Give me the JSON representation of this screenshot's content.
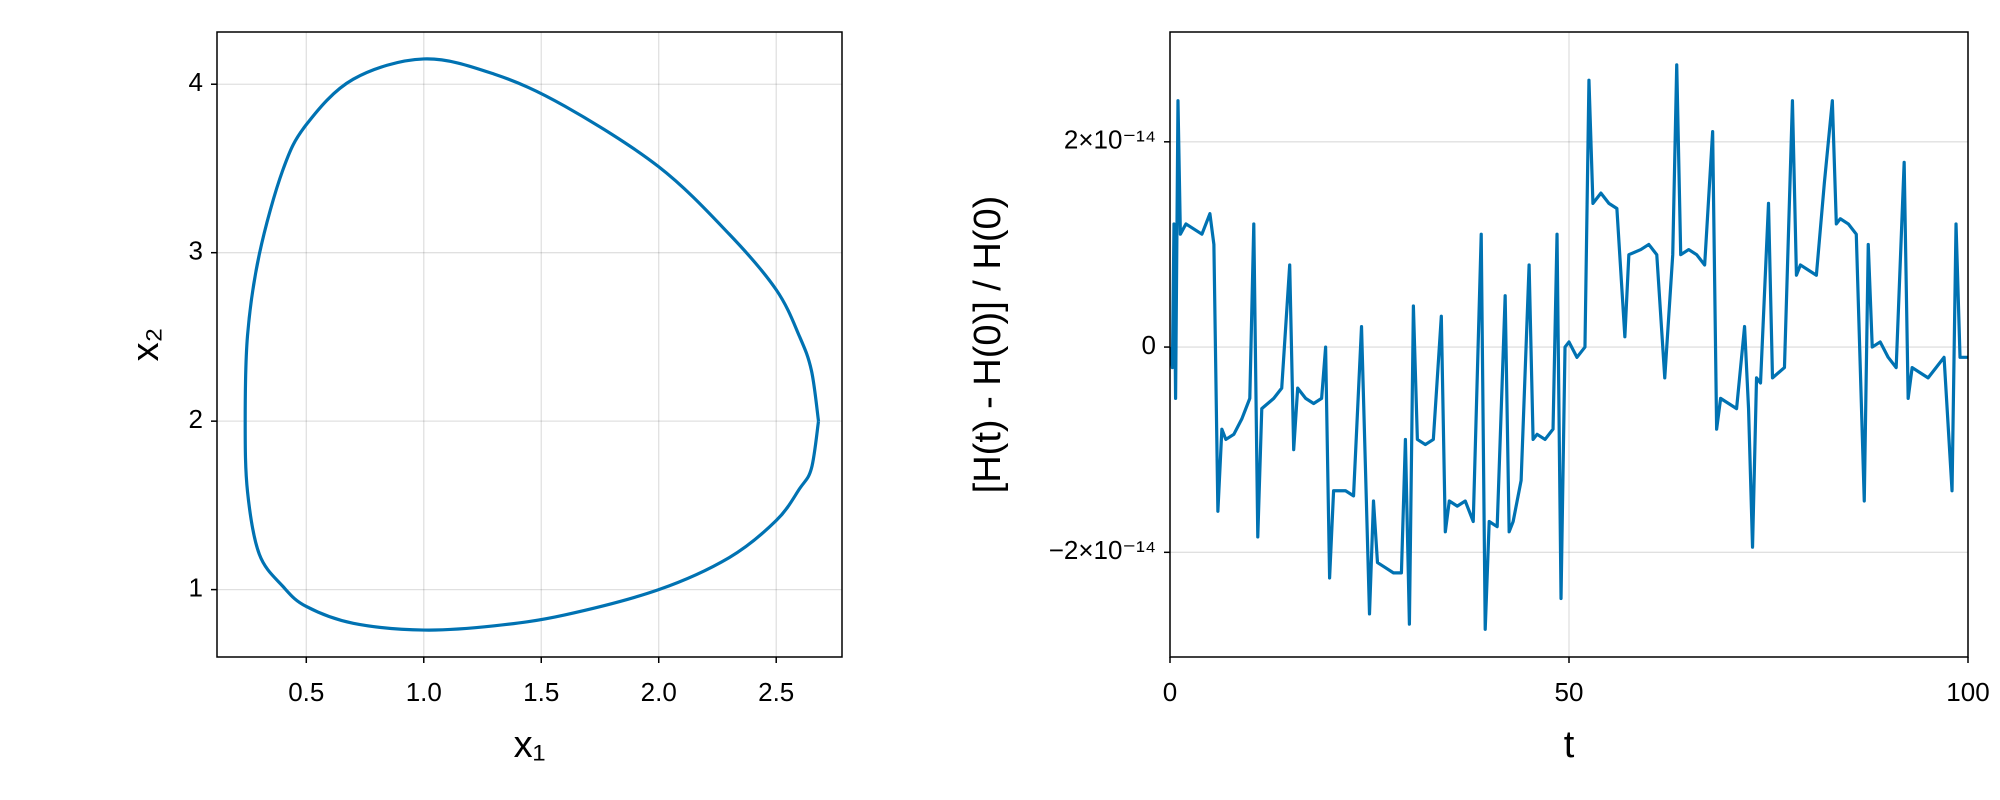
{
  "chart_data": [
    {
      "type": "line",
      "xlabel": "x₁",
      "ylabel": "x₂",
      "color": "#0072b2",
      "grid": true,
      "xlim": [
        0.12,
        2.78
      ],
      "ylim": [
        0.6,
        4.31
      ],
      "xticks": [
        0.5,
        {
          "value": 1,
          "label": "1.0"
        },
        1.5,
        {
          "value": 2,
          "label": "2.0"
        },
        2.5
      ],
      "yticks": [
        1,
        2,
        3,
        4
      ],
      "x": [
        2.68,
        2.65,
        2.6,
        2.5,
        2.3,
        2.0,
        1.6,
        1.3,
        1.0,
        0.7,
        0.5,
        0.4,
        0.3,
        0.25,
        0.24,
        0.25,
        0.3,
        0.4,
        0.5,
        0.7,
        1.0,
        1.3,
        1.6,
        2.0,
        2.3,
        2.5,
        2.6,
        2.65,
        2.68
      ],
      "y": [
        2.0,
        2.3,
        2.5,
        2.78,
        3.11,
        3.51,
        3.87,
        4.06,
        4.15,
        4.03,
        3.76,
        3.49,
        2.99,
        2.51,
        2.0,
        1.58,
        1.21,
        1.02,
        0.9,
        0.8,
        0.76,
        0.785,
        0.85,
        1.0,
        1.19,
        1.41,
        1.6,
        1.72,
        2.0
      ]
    },
    {
      "type": "line",
      "xlabel": "t",
      "ylabel": "[H(t) - H(0)] / H(0)",
      "color": "#0072b2",
      "grid": true,
      "xlim": [
        0,
        100
      ],
      "ylim": [
        -3.02e-14,
        3.07e-14
      ],
      "xticks": [
        0,
        50,
        100
      ],
      "yticks": [
        {
          "value": -2e-14,
          "label": "−2×10⁻¹⁴"
        },
        0,
        {
          "value": 2e-14,
          "label": "2×10⁻¹⁴"
        }
      ],
      "x": [
        0,
        0.3,
        0.5,
        0.7,
        1.0,
        1.3,
        2,
        3,
        4,
        5,
        5.5,
        6,
        6.5,
        7,
        8,
        9,
        10,
        10.5,
        11,
        11.5,
        13,
        14,
        15,
        15.5,
        16,
        17,
        18,
        19,
        19.5,
        20,
        20.5,
        22,
        23,
        24,
        25,
        25.5,
        26,
        27,
        28,
        29,
        29.5,
        30,
        30.5,
        31,
        32,
        33,
        34,
        34.5,
        35,
        36,
        37,
        38,
        39,
        39.5,
        40,
        41,
        42,
        42.5,
        43,
        44,
        45,
        45.5,
        46,
        47,
        48,
        48.5,
        49,
        49.5,
        50,
        51,
        52,
        52.5,
        53,
        54,
        55,
        56,
        57,
        57.5,
        59,
        60,
        61,
        62,
        63,
        63.5,
        64,
        65,
        66,
        67,
        68,
        68.5,
        69,
        70,
        71,
        72,
        72.5,
        73,
        73.5,
        74,
        75,
        75.5,
        77,
        78,
        78.5,
        79,
        80,
        81,
        82,
        83,
        83.5,
        84,
        85,
        86,
        87,
        87.5,
        88,
        89,
        90,
        91,
        92,
        92.5,
        93,
        94,
        95,
        96,
        97,
        98,
        98.5,
        99,
        100
      ],
      "y": [
        0,
        -2e-15,
        1.2e-14,
        -5e-15,
        2.4e-14,
        1.1e-14,
        1.2e-14,
        1.15e-14,
        1.1e-14,
        1.3e-14,
        1e-14,
        -1.6e-14,
        -8e-15,
        -9e-15,
        -8.5e-15,
        -7e-15,
        -5e-15,
        1.2e-14,
        -1.85e-14,
        -6e-15,
        -5e-15,
        -4e-15,
        8e-15,
        -1e-14,
        -4e-15,
        -5e-15,
        -5.5e-15,
        -5e-15,
        0,
        -2.25e-14,
        -1.4e-14,
        -1.4e-14,
        -1.45e-14,
        2e-15,
        -2.6e-14,
        -1.5e-14,
        -2.1e-14,
        -2.15e-14,
        -2.2e-14,
        -2.2e-14,
        -9e-15,
        -2.7e-14,
        4e-15,
        -9e-15,
        -9.5e-15,
        -9e-15,
        3e-15,
        -1.8e-14,
        -1.5e-14,
        -1.55e-14,
        -1.5e-14,
        -1.7e-14,
        1.1e-14,
        -2.75e-14,
        -1.7e-14,
        -1.75e-14,
        5e-15,
        -1.8e-14,
        -1.7e-14,
        -1.3e-14,
        8e-15,
        -9e-15,
        -8.5e-15,
        -9e-15,
        -8e-15,
        1.1e-14,
        -2.45e-14,
        0,
        5e-16,
        -1e-15,
        0,
        2.6e-14,
        1.4e-14,
        1.5e-14,
        1.4e-14,
        1.35e-14,
        1e-15,
        9e-15,
        9.5e-15,
        1e-14,
        9e-15,
        -3e-15,
        9e-15,
        2.75e-14,
        9e-15,
        9.5e-15,
        9e-15,
        8e-15,
        2.1e-14,
        -8e-15,
        -5e-15,
        -5.5e-15,
        -6e-15,
        2e-15,
        -6e-15,
        -1.95e-14,
        -3e-15,
        -3.5e-15,
        1.4e-14,
        -3e-15,
        -2e-15,
        2.4e-14,
        7e-15,
        8e-15,
        7.5e-15,
        7e-15,
        1.6e-14,
        2.4e-14,
        1.2e-14,
        1.25e-14,
        1.2e-14,
        1.1e-14,
        -1.5e-14,
        1e-14,
        0,
        5e-16,
        -1e-15,
        -2e-15,
        1.8e-14,
        -5e-15,
        -2e-15,
        -2.5e-15,
        -3e-15,
        -2e-15,
        -1e-15,
        -1.4e-14,
        1.2e-14,
        -1e-15,
        -1e-15
      ]
    }
  ]
}
